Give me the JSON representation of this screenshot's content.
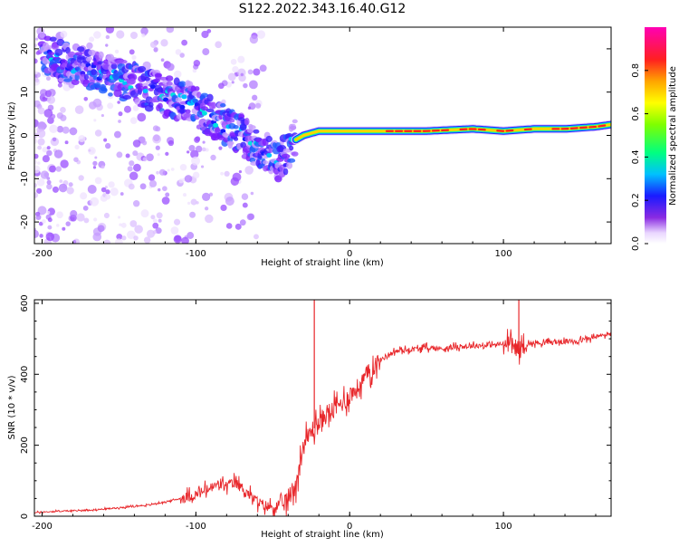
{
  "figure": {
    "title": "S122.2022.343.16.40.G12"
  },
  "chart_data": [
    {
      "type": "heatmap",
      "xlabel": "Height of straight line (km)",
      "ylabel": "Frequency (Hz)",
      "xlim": [
        -205,
        170
      ],
      "ylim": [
        -25,
        25
      ],
      "xticks": [
        -200,
        -100,
        0,
        100
      ],
      "yticks": [
        -20,
        -10,
        0,
        10,
        20
      ],
      "colorbar": {
        "label": "Normalized spectral amplitude",
        "range": [
          0,
          1
        ],
        "ticks": [
          "0.0",
          "0.2",
          "0.4",
          "0.6",
          "0.8"
        ]
      },
      "ridge": {
        "x": [
          -200,
          -180,
          -160,
          -140,
          -120,
          -110,
          -100,
          -90,
          -80,
          -70,
          -60,
          -50,
          -45,
          -40,
          -35,
          -30,
          -25,
          -20,
          -10,
          0,
          20,
          50,
          80,
          100,
          120,
          140,
          160,
          170
        ],
        "y": [
          19,
          16,
          14,
          12,
          9,
          8,
          7,
          4,
          2,
          0,
          -3,
          -5,
          -6,
          -3,
          -1,
          0,
          0.5,
          1,
          1,
          1,
          1,
          1,
          1.5,
          1,
          1.5,
          1.5,
          2,
          2.5
        ]
      }
    },
    {
      "type": "line",
      "xlabel": "Height of straight line (km)",
      "ylabel": "SNR (10 * v/v)",
      "xlim": [
        -205,
        170
      ],
      "ylim": [
        0,
        610
      ],
      "xticks": [
        -200,
        -100,
        0,
        100
      ],
      "yticks": [
        0,
        200,
        400,
        600
      ],
      "series": [
        {
          "color": "#e8262a",
          "x": [
            -205,
            -190,
            -175,
            -160,
            -150,
            -140,
            -130,
            -120,
            -110,
            -100,
            -95,
            -90,
            -85,
            -80,
            -75,
            -70,
            -65,
            -60,
            -55,
            -50,
            -45,
            -40,
            -35,
            -30,
            -25,
            -20,
            -15,
            -10,
            -5,
            0,
            5,
            10,
            15,
            20,
            25,
            30,
            40,
            50,
            60,
            70,
            80,
            90,
            100,
            105,
            110,
            115,
            120,
            130,
            140,
            150,
            160,
            170
          ],
          "y": [
            10,
            14,
            16,
            20,
            24,
            28,
            32,
            40,
            50,
            60,
            70,
            80,
            90,
            85,
            95,
            80,
            60,
            40,
            30,
            25,
            30,
            50,
            90,
            200,
            240,
            260,
            290,
            300,
            320,
            340,
            360,
            390,
            420,
            440,
            455,
            465,
            470,
            475,
            472,
            478,
            480,
            482,
            485,
            486,
            470,
            485,
            488,
            490,
            492,
            495,
            505,
            515
          ]
        }
      ],
      "spikes": [
        {
          "x": -23,
          "y": 610
        },
        {
          "x": 110,
          "y": 610
        }
      ]
    }
  ]
}
